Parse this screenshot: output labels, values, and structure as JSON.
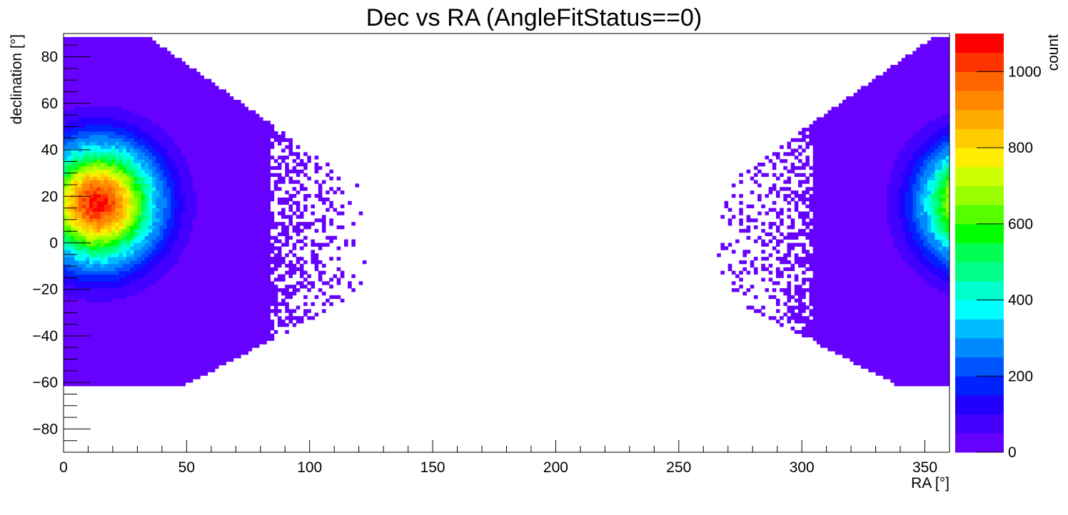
{
  "chart_data": {
    "type": "heatmap",
    "title": "Dec vs RA (AngleFitStatus==0)",
    "xlabel": "RA [°]",
    "ylabel": "declination [°]",
    "zlabel": "count",
    "xlim": [
      0,
      360
    ],
    "ylim": [
      -90,
      90
    ],
    "zlim": [
      0,
      1100
    ],
    "x_ticks": [
      0,
      50,
      100,
      150,
      200,
      250,
      300,
      350
    ],
    "x_tick_labels": [
      "0",
      "50",
      "100",
      "150",
      "200",
      "250",
      "300",
      "350"
    ],
    "y_ticks": [
      -80,
      -60,
      -40,
      -20,
      0,
      20,
      40,
      60,
      80
    ],
    "y_tick_labels": [
      "−80",
      "−60",
      "−40",
      "−20",
      "0",
      "20",
      "40",
      "60",
      "80"
    ],
    "z_ticks": [
      0,
      200,
      400,
      600,
      800,
      1000
    ],
    "z_tick_labels": [
      "0",
      "200",
      "400",
      "600",
      "800",
      "1000"
    ],
    "grid": false,
    "legend": "colorbar-right",
    "bins": {
      "nx": 360,
      "ny": 180,
      "x_width": 1,
      "y_width": 1
    },
    "density_model": {
      "components": [
        {
          "center_ra": 14,
          "center_dec": 17,
          "peak": 1080,
          "sigma_ra": 16,
          "sigma_dec": 17,
          "wraps_ra": true
        }
      ],
      "populated_dec_range_at_core": [
        -62,
        88
      ],
      "empty_band_ra": [
        130,
        280
      ]
    },
    "palette": [
      "#6600ff",
      "#4400ff",
      "#2200ff",
      "#0022ff",
      "#0055ff",
      "#0088ff",
      "#00bbff",
      "#00ffff",
      "#00ffcc",
      "#00ff88",
      "#00ff55",
      "#00ff00",
      "#55ff00",
      "#99ff00",
      "#ccff00",
      "#ffee00",
      "#ffcc00",
      "#ffaa00",
      "#ff8800",
      "#ff6600",
      "#ff3300",
      "#ff0000"
    ]
  }
}
